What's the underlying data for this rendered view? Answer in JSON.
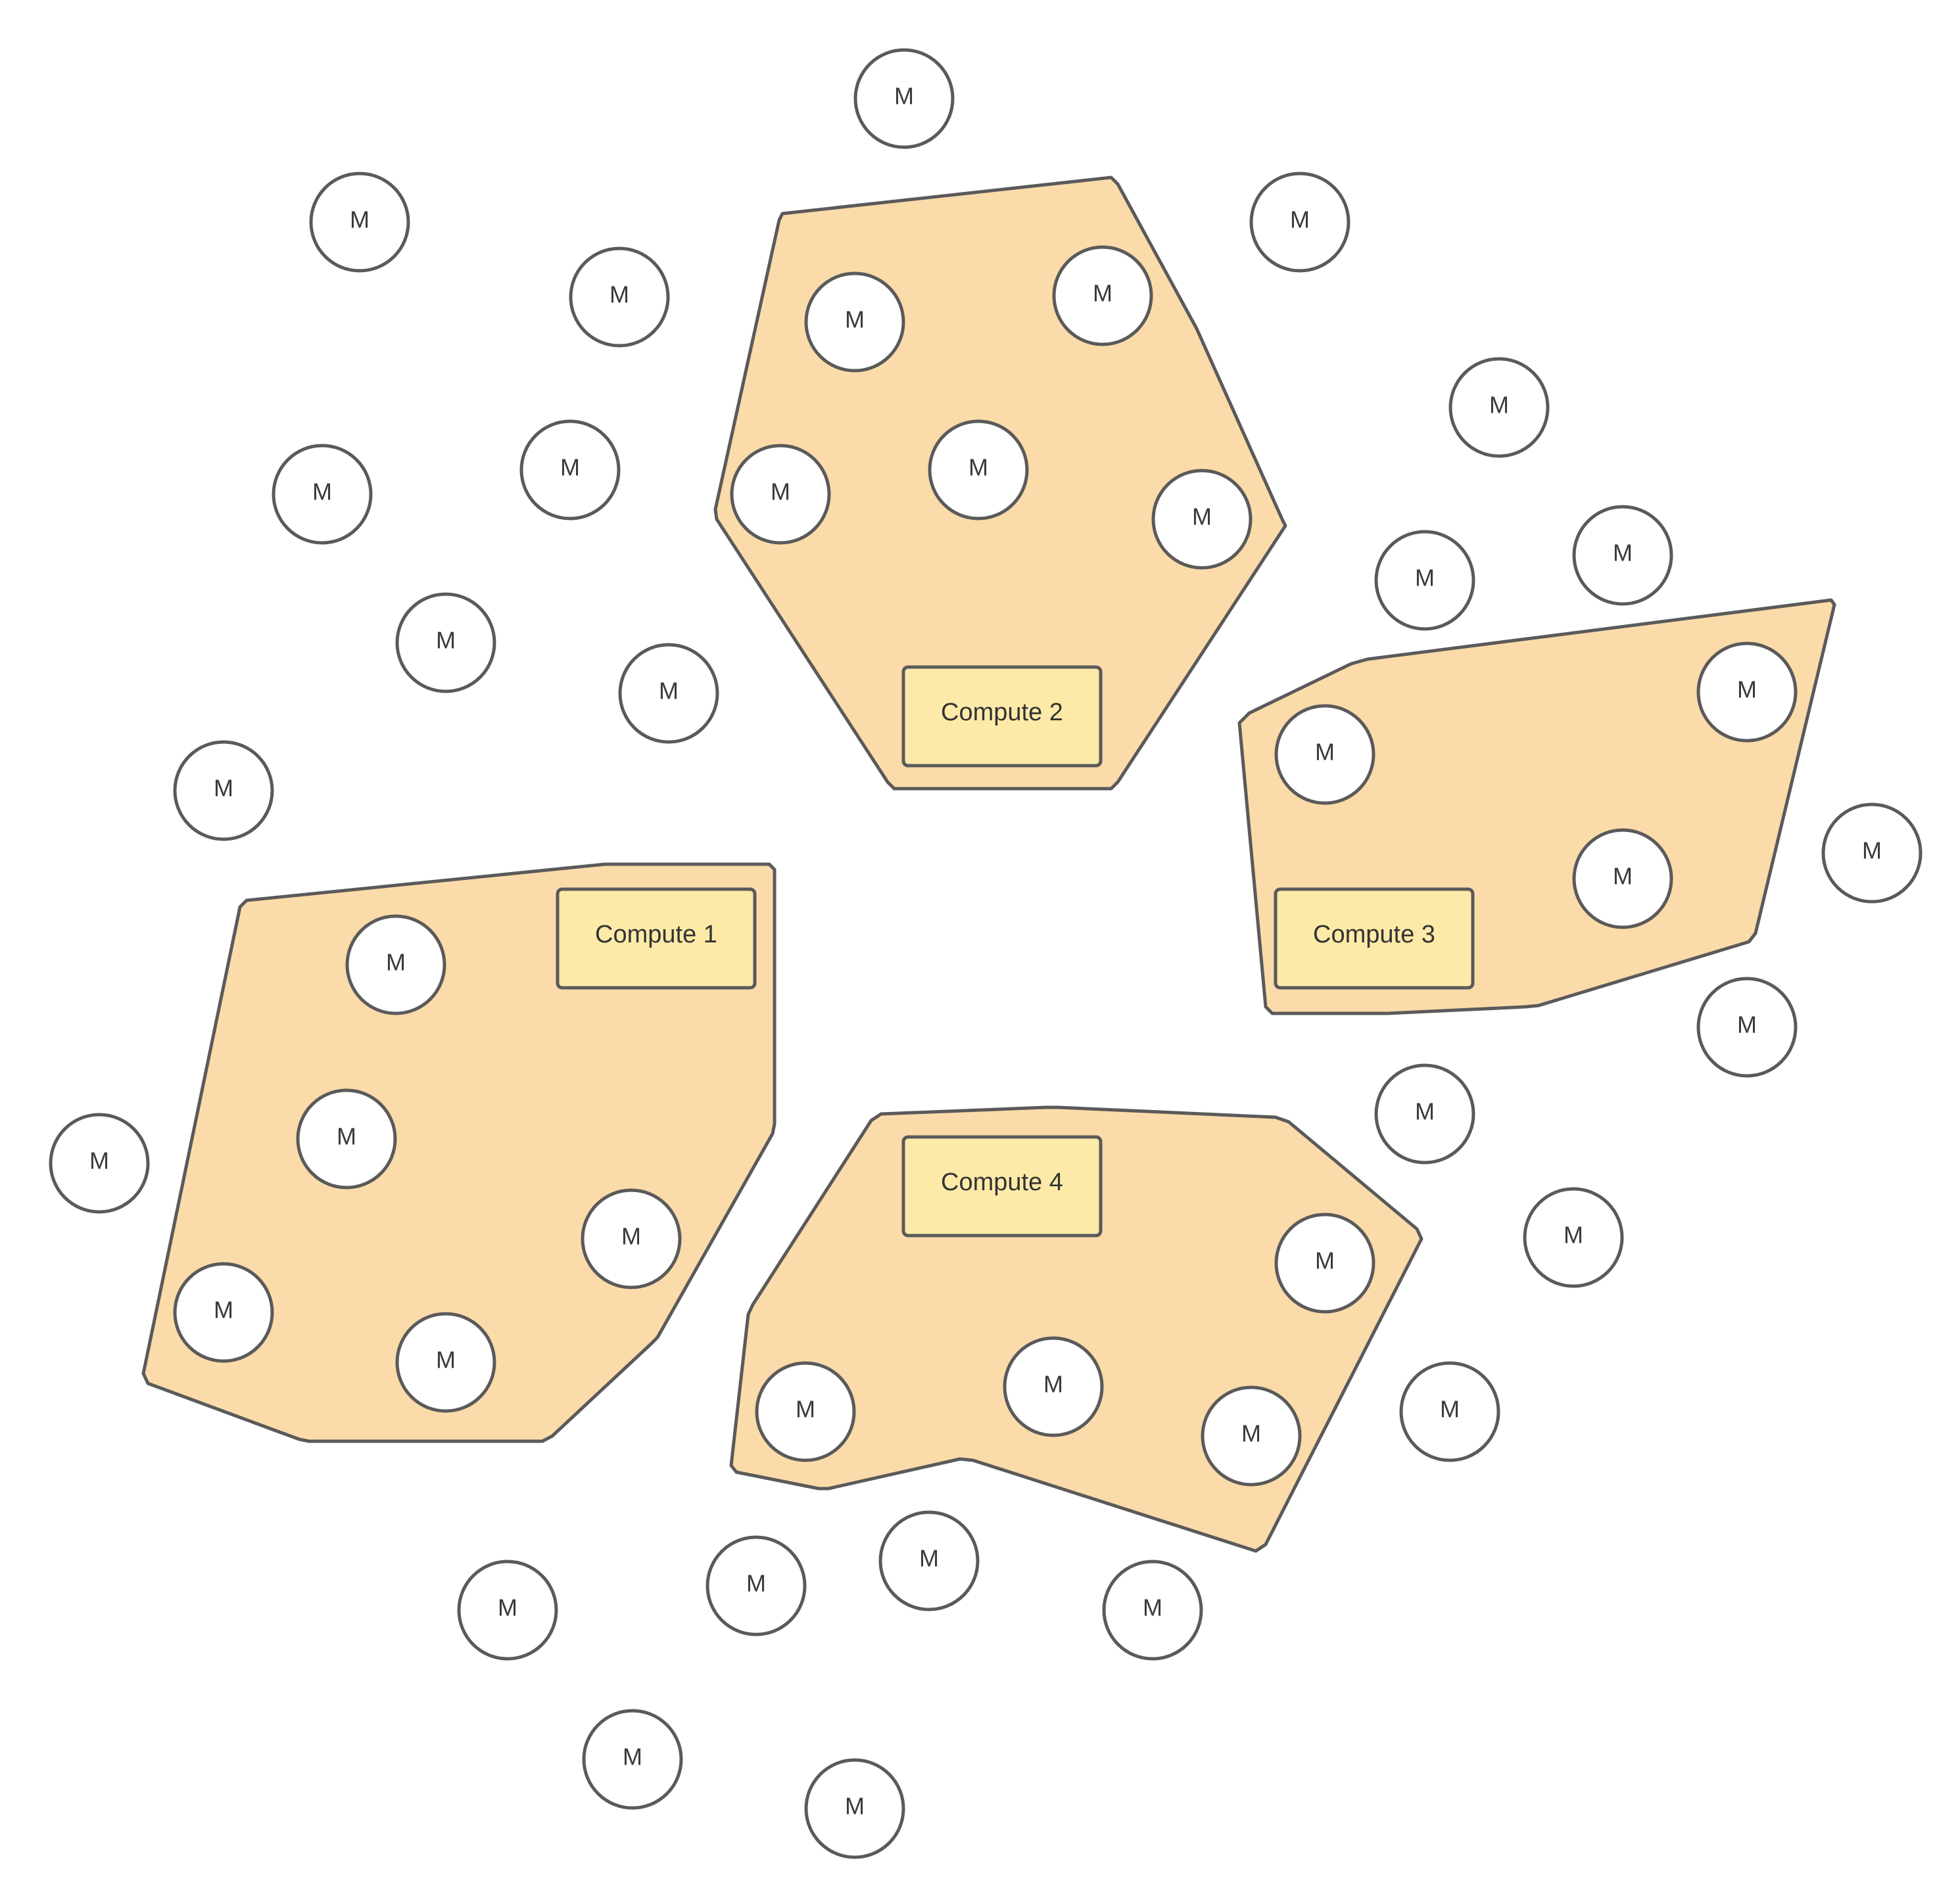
{
  "colors": {
    "region_fill": "#fcdbaa",
    "box_fill": "#feeaa8",
    "stroke": "#5a5a5a",
    "background": "#ffffff"
  },
  "compute_boxes": [
    {
      "label": "Compute 1"
    },
    {
      "label": "Compute 2"
    },
    {
      "label": "Compute 3"
    },
    {
      "label": "Compute 4"
    }
  ],
  "node_label": "M"
}
